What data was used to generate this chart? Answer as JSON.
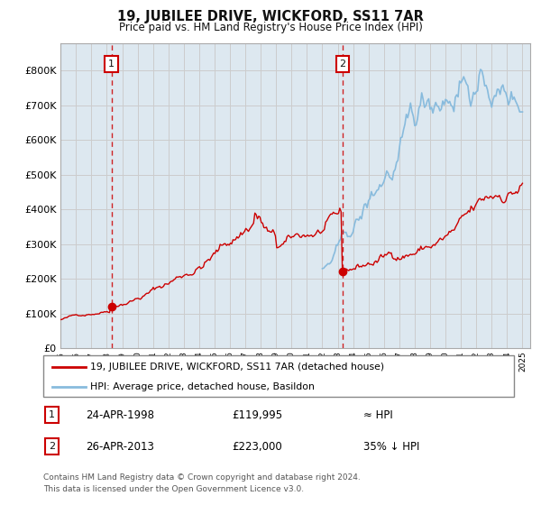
{
  "title": "19, JUBILEE DRIVE, WICKFORD, SS11 7AR",
  "subtitle": "Price paid vs. HM Land Registry's House Price Index (HPI)",
  "legend_line1": "19, JUBILEE DRIVE, WICKFORD, SS11 7AR (detached house)",
  "legend_line2": "HPI: Average price, detached house, Basildon",
  "annotation1_date": "24-APR-1998",
  "annotation1_price": "£119,995",
  "annotation1_hpi": "≈ HPI",
  "annotation2_date": "26-APR-2013",
  "annotation2_price": "£223,000",
  "annotation2_hpi": "35% ↓ HPI",
  "footer": "Contains HM Land Registry data © Crown copyright and database right 2024.\nThis data is licensed under the Open Government Licence v3.0.",
  "sale1_year": 1998.31,
  "sale1_price": 119995,
  "sale2_year": 2013.32,
  "sale2_price": 223000,
  "ylim_min": 0,
  "ylim_max": 880000,
  "line_color_red": "#cc0000",
  "line_color_blue": "#88bbdd",
  "dashed_color": "#cc0000",
  "grid_color": "#cccccc",
  "background_color": "#ffffff",
  "plot_bg_color": "#dde8f0",
  "label_box_color": "#cc0000",
  "label_text_color": "#222222"
}
